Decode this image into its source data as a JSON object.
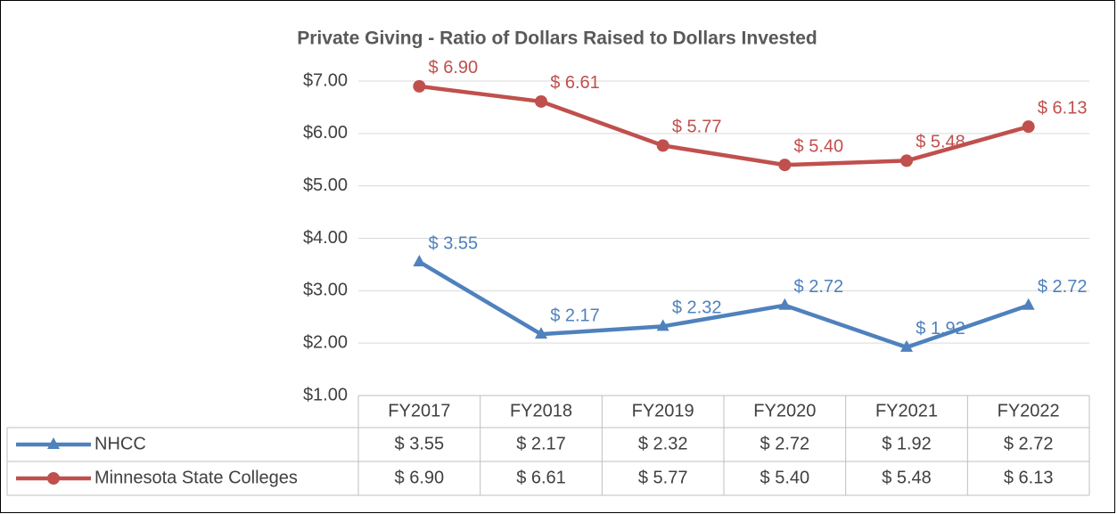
{
  "chart_data": {
    "type": "line",
    "title": "Private Giving - Ratio of Dollars Raised to Dollars Invested",
    "categories": [
      "FY2017",
      "FY2018",
      "FY2019",
      "FY2020",
      "FY2021",
      "FY2022"
    ],
    "series": [
      {
        "name": "NHCC",
        "color": "#4f81bd",
        "marker": "triangle",
        "values": [
          3.55,
          2.17,
          2.32,
          2.72,
          1.92,
          2.72
        ],
        "value_labels": [
          "$ 3.55",
          "$ 2.17",
          "$ 2.32",
          "$ 2.72",
          "$ 1.92",
          "$ 2.72"
        ]
      },
      {
        "name": "Minnesota State Colleges",
        "color": "#c0504d",
        "marker": "circle",
        "values": [
          6.9,
          6.61,
          5.77,
          5.4,
          5.48,
          6.13
        ],
        "value_labels": [
          "$ 6.90",
          "$ 6.61",
          "$ 5.77",
          "$ 5.40",
          "$ 5.48",
          "$ 6.13"
        ]
      }
    ],
    "ylim": [
      1,
      7
    ],
    "yticks": [
      {
        "value": 1,
        "label": "$1.00"
      },
      {
        "value": 2,
        "label": "$2.00"
      },
      {
        "value": 3,
        "label": "$3.00"
      },
      {
        "value": 4,
        "label": "$4.00"
      },
      {
        "value": 5,
        "label": "$5.00"
      },
      {
        "value": 6,
        "label": "$6.00"
      },
      {
        "value": 7,
        "label": "$7.00"
      }
    ],
    "grid": true
  }
}
